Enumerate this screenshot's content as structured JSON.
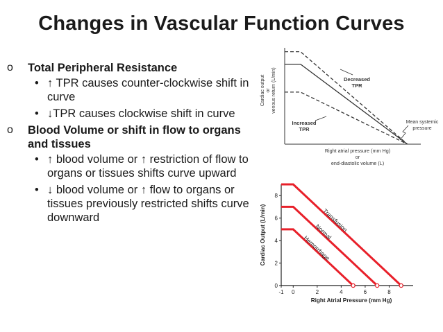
{
  "slide": {
    "title": "Changes in Vascular Function Curves",
    "bullets": [
      {
        "marker": "o",
        "text": "Total Peripheral Resistance",
        "subs": [
          {
            "marker": "•",
            "text": "↑ TPR causes counter-clockwise shift in curve"
          },
          {
            "marker": "•",
            "text": "↓TPR causes clockwise shift in curve"
          }
        ]
      },
      {
        "marker": "o",
        "text": "Blood Volume or shift in flow to organs and tissues",
        "subs": [
          {
            "marker": "•",
            "text": "↑ blood volume or ↑ restriction of flow to organs or tissues shifts curve upward"
          },
          {
            "marker": "•",
            "text": "↓ blood volume or ↑ flow to organs or tissues previously restricted shifts curve downward"
          }
        ]
      }
    ]
  },
  "chart_data": [
    {
      "type": "line",
      "title": "",
      "ylabel": [
        "Cardiac output",
        "or",
        "venous return (L/min)"
      ],
      "xlabel": [
        "Right atrial pressure (mm Hg)",
        "or",
        "end-diastolic volume (L)"
      ],
      "xlim": [
        0,
        10
      ],
      "ylim": [
        0,
        10
      ],
      "color": "#333333",
      "annotations": [
        "Decreased TPR",
        "Increased TPR",
        "Mean systemic pressure"
      ],
      "series": [
        {
          "name": "Decreased TPR",
          "style": "dashed",
          "points": [
            [
              0,
              9.6
            ],
            [
              1.2,
              9.6
            ],
            [
              9.3,
              0
            ]
          ]
        },
        {
          "name": "",
          "style": "solid",
          "points": [
            [
              0,
              8.3
            ],
            [
              1.2,
              8.3
            ],
            [
              9.3,
              0
            ]
          ]
        },
        {
          "name": "Increased TPR",
          "style": "dashed",
          "points": [
            [
              0,
              5.4
            ],
            [
              1.2,
              5.4
            ],
            [
              9.3,
              0
            ]
          ]
        }
      ]
    },
    {
      "type": "line",
      "title": "",
      "ylabel": "Cardiac Output (L/min)",
      "xlabel": "Right Atrial Pressure (mm Hg)",
      "xlim": [
        -1,
        10
      ],
      "ylim": [
        0,
        9
      ],
      "xticks": [
        -1,
        0,
        2,
        4,
        6,
        8
      ],
      "yticks": [
        0,
        2,
        4,
        6,
        8
      ],
      "color": "#e8202a",
      "series": [
        {
          "name": "Transfusion",
          "points": [
            [
              -1,
              9
            ],
            [
              0,
              9
            ],
            [
              9,
              0
            ]
          ]
        },
        {
          "name": "Normal",
          "points": [
            [
              -1,
              7
            ],
            [
              0,
              7
            ],
            [
              7,
              0
            ]
          ]
        },
        {
          "name": "Hemorrhage",
          "points": [
            [
              -1,
              5
            ],
            [
              0,
              5
            ],
            [
              5,
              0
            ]
          ]
        }
      ]
    }
  ]
}
